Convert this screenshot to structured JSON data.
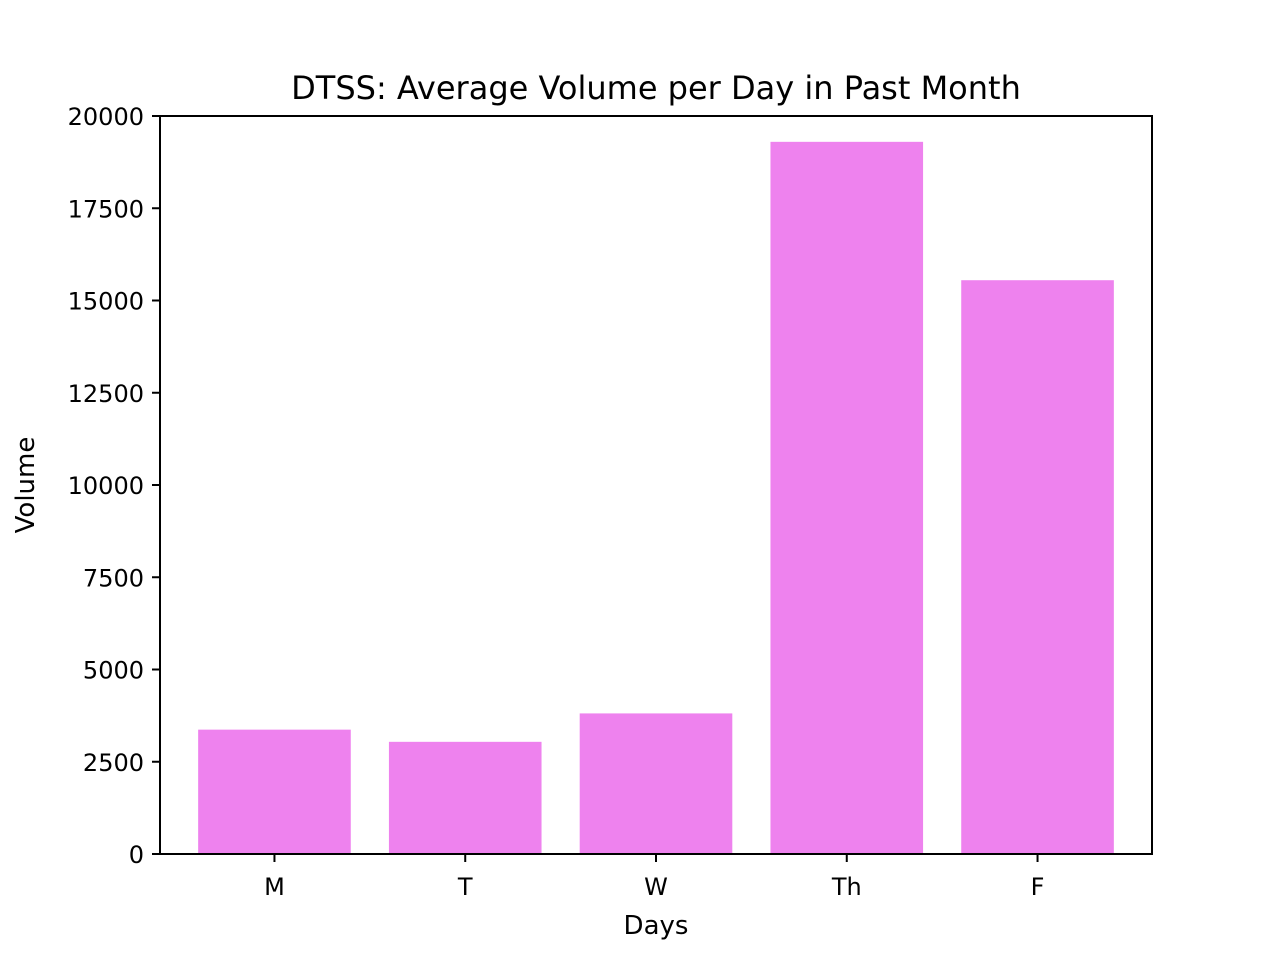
{
  "chart_data": {
    "type": "bar",
    "title": "DTSS: Average Volume per Day in Past Month",
    "xlabel": "Days",
    "ylabel": "Volume",
    "categories": [
      "M",
      "T",
      "W",
      "Th",
      "F"
    ],
    "values": [
      3370,
      3040,
      3810,
      19300,
      15550
    ],
    "ylim": [
      0,
      20000
    ],
    "yticks": [
      0,
      2500,
      5000,
      7500,
      10000,
      12500,
      15000,
      17500,
      20000
    ],
    "bar_color": "#ee82ee",
    "grid": false,
    "legend": "none"
  }
}
